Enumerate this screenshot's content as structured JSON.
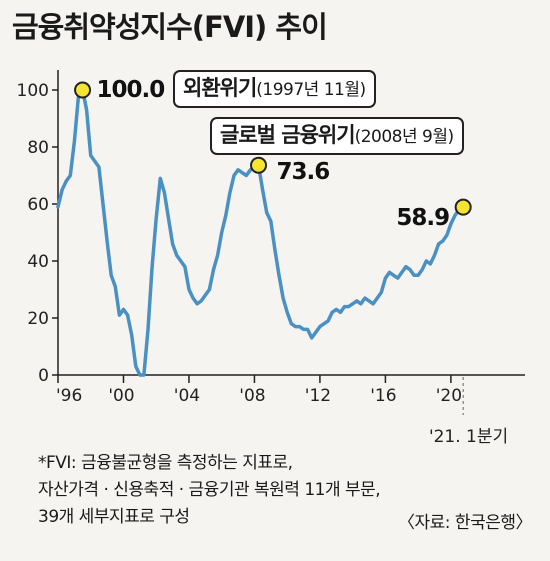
{
  "title": "금융취약성지수(FVI)  추이",
  "chart_data": {
    "type": "line",
    "xlabel": "",
    "ylabel": "",
    "ylim": [
      0,
      100
    ],
    "yticks": [
      0,
      20,
      40,
      60,
      80,
      100
    ],
    "xlim": [
      1996,
      2023
    ],
    "xticks": [
      1996,
      2000,
      2004,
      2008,
      2012,
      2016,
      2020
    ],
    "xtick_labels": [
      "'96",
      "'00",
      "'04",
      "'08",
      "'12",
      "'16",
      "'20"
    ],
    "end_label": "'21. 1분기",
    "line_color": "#4a90c2",
    "marker_color": "#f5e430",
    "grid": false,
    "series": [
      {
        "values": [
          [
            1996.0,
            59
          ],
          [
            1996.25,
            65
          ],
          [
            1996.5,
            68
          ],
          [
            1996.75,
            70
          ],
          [
            1997.0,
            82
          ],
          [
            1997.25,
            98
          ],
          [
            1997.5,
            100
          ],
          [
            1997.75,
            93
          ],
          [
            1998.0,
            77
          ],
          [
            1998.25,
            75
          ],
          [
            1998.5,
            73
          ],
          [
            1998.75,
            60
          ],
          [
            1999.0,
            47
          ],
          [
            1999.25,
            35
          ],
          [
            1999.5,
            31
          ],
          [
            1999.75,
            21
          ],
          [
            2000.0,
            23
          ],
          [
            2000.25,
            21
          ],
          [
            2000.5,
            14
          ],
          [
            2000.75,
            3
          ],
          [
            2001.0,
            0
          ],
          [
            2001.25,
            0
          ],
          [
            2001.5,
            16
          ],
          [
            2001.75,
            38
          ],
          [
            2002.0,
            55
          ],
          [
            2002.25,
            69
          ],
          [
            2002.5,
            64
          ],
          [
            2002.75,
            55
          ],
          [
            2003.0,
            46
          ],
          [
            2003.25,
            42
          ],
          [
            2003.5,
            40
          ],
          [
            2003.75,
            38
          ],
          [
            2004.0,
            30
          ],
          [
            2004.25,
            27
          ],
          [
            2004.5,
            25
          ],
          [
            2004.75,
            26
          ],
          [
            2005.0,
            28
          ],
          [
            2005.25,
            30
          ],
          [
            2005.5,
            37
          ],
          [
            2005.75,
            42
          ],
          [
            2006.0,
            50
          ],
          [
            2006.25,
            56
          ],
          [
            2006.5,
            64
          ],
          [
            2006.75,
            70
          ],
          [
            2007.0,
            72
          ],
          [
            2007.25,
            71
          ],
          [
            2007.5,
            70
          ],
          [
            2007.75,
            72
          ],
          [
            2008.0,
            73
          ],
          [
            2008.25,
            73.6
          ],
          [
            2008.5,
            65
          ],
          [
            2008.75,
            57
          ],
          [
            2009.0,
            54
          ],
          [
            2009.25,
            44
          ],
          [
            2009.5,
            35
          ],
          [
            2009.75,
            27
          ],
          [
            2010.0,
            22
          ],
          [
            2010.25,
            18
          ],
          [
            2010.5,
            17
          ],
          [
            2010.75,
            17
          ],
          [
            2011.0,
            16
          ],
          [
            2011.25,
            16
          ],
          [
            2011.5,
            13
          ],
          [
            2011.75,
            15
          ],
          [
            2012.0,
            17
          ],
          [
            2012.25,
            18
          ],
          [
            2012.5,
            19
          ],
          [
            2012.75,
            22
          ],
          [
            2013.0,
            23
          ],
          [
            2013.25,
            22
          ],
          [
            2013.5,
            24
          ],
          [
            2013.75,
            24
          ],
          [
            2014.0,
            25
          ],
          [
            2014.25,
            26
          ],
          [
            2014.5,
            25
          ],
          [
            2014.75,
            27
          ],
          [
            2015.0,
            26
          ],
          [
            2015.25,
            25
          ],
          [
            2015.5,
            27
          ],
          [
            2015.75,
            29
          ],
          [
            2016.0,
            34
          ],
          [
            2016.25,
            36
          ],
          [
            2016.5,
            35
          ],
          [
            2016.75,
            34
          ],
          [
            2017.0,
            36
          ],
          [
            2017.25,
            38
          ],
          [
            2017.5,
            37
          ],
          [
            2017.75,
            35
          ],
          [
            2018.0,
            35
          ],
          [
            2018.25,
            37
          ],
          [
            2018.5,
            40
          ],
          [
            2018.75,
            39
          ],
          [
            2019.0,
            42
          ],
          [
            2019.25,
            46
          ],
          [
            2019.5,
            47
          ],
          [
            2019.75,
            49
          ],
          [
            2020.0,
            53
          ],
          [
            2020.25,
            56
          ],
          [
            2020.5,
            58
          ],
          [
            2020.75,
            58.9
          ]
        ]
      }
    ],
    "highlights": [
      {
        "x": 1997.5,
        "y": 100.0,
        "label": "100.0"
      },
      {
        "x": 2008.25,
        "y": 73.6,
        "label": "73.6"
      },
      {
        "x": 2020.75,
        "y": 58.9,
        "label": "58.9"
      }
    ],
    "annotations": [
      {
        "main": "외환위기",
        "sub": "(1997년 11월)"
      },
      {
        "main": "글로벌 금융위기",
        "sub": "(2008년 9월)"
      }
    ]
  },
  "footnote": [
    "*FVI: 금융불균형을 측정하는 지표로,",
    "자산가격 · 신용축적 · 금융기관 복원력 11개 부문,",
    "39개 세부지표로 구성"
  ],
  "source": "〈자료: 한국은행〉"
}
